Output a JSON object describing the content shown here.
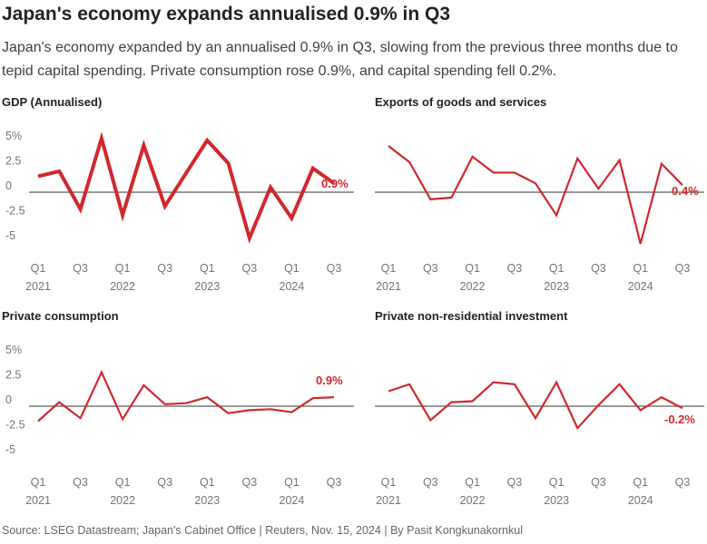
{
  "title": "Japan's economy expands annualised 0.9% in Q3",
  "subtitle": "Japan's economy expanded by an annualised 0.9% in Q3, slowing from the previous three months due to tepid capital spending. Private consumption rose 0.9%, and capital spending fell 0.2%.",
  "source": "Source: LSEG Datastream; Japan's Cabinet Office | Reuters, Nov. 15, 2024 | By Pasit Kongkunakornkul",
  "colors": {
    "line": "#d0282e",
    "axis": "#333333",
    "tick": "#757575",
    "text": "#222222"
  },
  "chart_data": [
    {
      "type": "line",
      "title": "GDP (Annualised)",
      "x": [
        "Q1 2021",
        "Q2 2021",
        "Q3 2021",
        "Q4 2021",
        "Q1 2022",
        "Q2 2022",
        "Q3 2022",
        "Q4 2022",
        "Q1 2023",
        "Q2 2023",
        "Q3 2023",
        "Q4 2023",
        "Q1 2024",
        "Q2 2024",
        "Q3 2024"
      ],
      "values": [
        1.6,
        2.1,
        -1.7,
        5.4,
        -2.3,
        4.7,
        -1.4,
        1.9,
        5.2,
        2.9,
        -4.6,
        0.5,
        -2.6,
        2.4,
        0.9
      ],
      "ylim": [
        -6,
        6
      ],
      "yticks": [
        {
          "v": 5,
          "label": "5%"
        },
        {
          "v": 2.5,
          "label": "2.5"
        },
        {
          "v": 0,
          "label": "0"
        },
        {
          "v": -2.5,
          "label": "-2.5"
        },
        {
          "v": -5,
          "label": "-5"
        }
      ],
      "xticks": [
        {
          "i": 0,
          "q": "Q1",
          "y": "2021"
        },
        {
          "i": 2,
          "q": "Q3",
          "y": ""
        },
        {
          "i": 4,
          "q": "Q1",
          "y": "2022"
        },
        {
          "i": 6,
          "q": "Q3",
          "y": ""
        },
        {
          "i": 8,
          "q": "Q1",
          "y": "2023"
        },
        {
          "i": 10,
          "q": "Q3",
          "y": ""
        },
        {
          "i": 12,
          "q": "Q1",
          "y": "2024"
        },
        {
          "i": 14,
          "q": "Q3",
          "y": ""
        }
      ],
      "last_label": "0.9%",
      "bold": true
    },
    {
      "type": "line",
      "title": "Exports of goods and services",
      "x": [
        "Q1 2021",
        "Q2 2021",
        "Q3 2021",
        "Q4 2021",
        "Q1 2022",
        "Q2 2022",
        "Q3 2022",
        "Q4 2022",
        "Q1 2023",
        "Q2 2023",
        "Q3 2023",
        "Q4 2023",
        "Q1 2024",
        "Q2 2024",
        "Q3 2024"
      ],
      "values": [
        2.6,
        1.7,
        -0.4,
        -0.3,
        2.0,
        1.1,
        1.1,
        0.5,
        -1.3,
        1.9,
        0.2,
        1.8,
        -2.9,
        1.6,
        0.4
      ],
      "ylim": [
        -3.5,
        3.5
      ],
      "yticks": [],
      "xticks": [
        {
          "i": 0,
          "q": "Q1",
          "y": "2021"
        },
        {
          "i": 2,
          "q": "Q3",
          "y": ""
        },
        {
          "i": 4,
          "q": "Q1",
          "y": "2022"
        },
        {
          "i": 6,
          "q": "Q3",
          "y": ""
        },
        {
          "i": 8,
          "q": "Q1",
          "y": "2023"
        },
        {
          "i": 10,
          "q": "Q3",
          "y": ""
        },
        {
          "i": 12,
          "q": "Q1",
          "y": "2024"
        },
        {
          "i": 14,
          "q": "Q3",
          "y": ""
        }
      ],
      "last_label": "0.4%",
      "bold": false
    },
    {
      "type": "line",
      "title": "Private consumption",
      "x": [
        "Q1 2021",
        "Q2 2021",
        "Q3 2021",
        "Q4 2021",
        "Q1 2022",
        "Q2 2022",
        "Q3 2022",
        "Q4 2022",
        "Q1 2023",
        "Q2 2023",
        "Q3 2023",
        "Q4 2023",
        "Q1 2024",
        "Q2 2024",
        "Q3 2024"
      ],
      "values": [
        -1.5,
        0.4,
        -1.2,
        3.4,
        -1.3,
        2.1,
        0.2,
        0.3,
        0.9,
        -0.7,
        -0.4,
        -0.3,
        -0.6,
        0.8,
        0.9
      ],
      "ylim": [
        -6,
        6
      ],
      "yticks": [
        {
          "v": 5,
          "label": "5%"
        },
        {
          "v": 2.5,
          "label": "2.5"
        },
        {
          "v": 0,
          "label": "0"
        },
        {
          "v": -2.5,
          "label": "-2.5"
        },
        {
          "v": -5,
          "label": "-5"
        }
      ],
      "xticks": [
        {
          "i": 0,
          "q": "Q1",
          "y": "2021"
        },
        {
          "i": 2,
          "q": "Q3",
          "y": ""
        },
        {
          "i": 4,
          "q": "Q1",
          "y": "2022"
        },
        {
          "i": 6,
          "q": "Q3",
          "y": ""
        },
        {
          "i": 8,
          "q": "Q1",
          "y": "2023"
        },
        {
          "i": 10,
          "q": "Q3",
          "y": ""
        },
        {
          "i": 12,
          "q": "Q1",
          "y": "2024"
        },
        {
          "i": 14,
          "q": "Q3",
          "y": ""
        }
      ],
      "last_label": "0.9%",
      "bold": false
    },
    {
      "type": "line",
      "title": "Private non-residential investment",
      "x": [
        "Q1 2021",
        "Q2 2021",
        "Q3 2021",
        "Q4 2021",
        "Q1 2022",
        "Q2 2022",
        "Q3 2022",
        "Q4 2022",
        "Q1 2023",
        "Q2 2023",
        "Q3 2023",
        "Q4 2023",
        "Q1 2024",
        "Q2 2024",
        "Q3 2024"
      ],
      "values": [
        1.5,
        2.2,
        -1.4,
        0.4,
        0.5,
        2.4,
        2.2,
        -1.2,
        2.4,
        -2.2,
        0.1,
        2.2,
        -0.4,
        0.9,
        -0.2
      ],
      "ylim": [
        -6,
        6
      ],
      "yticks": [],
      "xticks": [
        {
          "i": 0,
          "q": "Q1",
          "y": "2021"
        },
        {
          "i": 2,
          "q": "Q3",
          "y": ""
        },
        {
          "i": 4,
          "q": "Q1",
          "y": "2022"
        },
        {
          "i": 6,
          "q": "Q3",
          "y": ""
        },
        {
          "i": 8,
          "q": "Q1",
          "y": "2023"
        },
        {
          "i": 10,
          "q": "Q3",
          "y": ""
        },
        {
          "i": 12,
          "q": "Q1",
          "y": "2024"
        },
        {
          "i": 14,
          "q": "Q3",
          "y": ""
        }
      ],
      "last_label": "-0.2%",
      "bold": false
    }
  ]
}
